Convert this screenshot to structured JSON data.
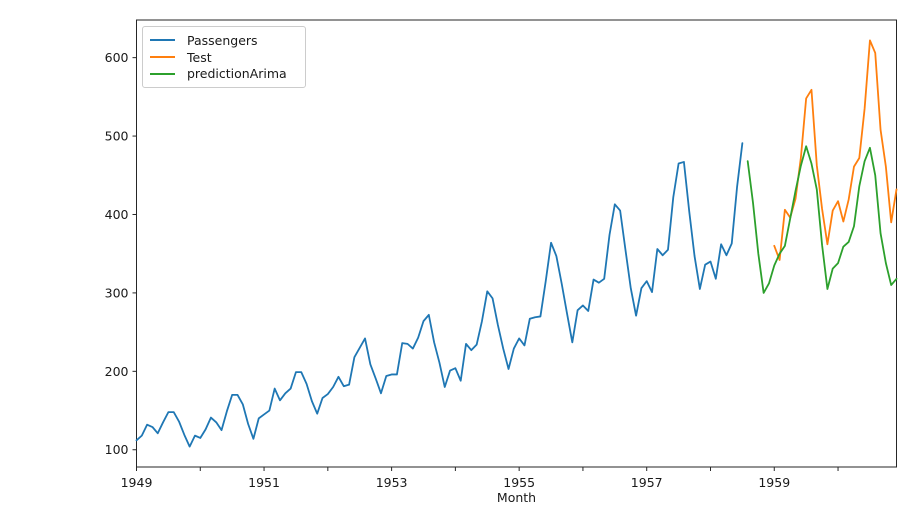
{
  "chart_data": {
    "type": "line",
    "title": "",
    "xlabel": "Month",
    "ylabel": "",
    "grid": false,
    "legend_position": "upper left",
    "x_axis": {
      "unit": "month index (0 = Jan 1949)",
      "xlim": [
        0,
        143
      ],
      "ticks": [
        {
          "month": 0,
          "label": "1949"
        },
        {
          "month": 12,
          "label": ""
        },
        {
          "month": 24,
          "label": "1951"
        },
        {
          "month": 36,
          "label": ""
        },
        {
          "month": 48,
          "label": "1953"
        },
        {
          "month": 60,
          "label": ""
        },
        {
          "month": 72,
          "label": "1955"
        },
        {
          "month": 84,
          "label": ""
        },
        {
          "month": 96,
          "label": "1957"
        },
        {
          "month": 108,
          "label": ""
        },
        {
          "month": 120,
          "label": "1959"
        },
        {
          "month": 132,
          "label": ""
        }
      ]
    },
    "y_axis": {
      "ylim": [
        78,
        648
      ],
      "ticks": [
        100,
        200,
        300,
        400,
        500,
        600
      ]
    },
    "series": [
      {
        "name": "Passengers",
        "color": "#1f77b4",
        "start_month": 0,
        "start_period": "1949-01",
        "end_period": "1958-07",
        "values": [
          112,
          118,
          132,
          129,
          121,
          135,
          148,
          148,
          136,
          119,
          104,
          118,
          115,
          126,
          141,
          135,
          125,
          149,
          170,
          170,
          158,
          133,
          114,
          140,
          145,
          150,
          178,
          163,
          172,
          178,
          199,
          199,
          184,
          162,
          146,
          166,
          171,
          180,
          193,
          181,
          183,
          218,
          230,
          242,
          209,
          191,
          172,
          194,
          196,
          196,
          236,
          235,
          229,
          243,
          264,
          272,
          237,
          211,
          180,
          201,
          204,
          188,
          235,
          227,
          234,
          264,
          302,
          293,
          259,
          229,
          203,
          229,
          242,
          233,
          267,
          269,
          270,
          315,
          364,
          347,
          312,
          274,
          237,
          278,
          284,
          277,
          317,
          313,
          318,
          374,
          413,
          405,
          355,
          306,
          271,
          306,
          315,
          301,
          356,
          348,
          355,
          422,
          465,
          467,
          404,
          347,
          305,
          336,
          340,
          318,
          362,
          348,
          363,
          435,
          491
        ]
      },
      {
        "name": "Test",
        "color": "#ff7f0e",
        "start_month": 120,
        "start_period": "1959-01",
        "end_period": "1960-12",
        "values": [
          360,
          342,
          406,
          396,
          420,
          472,
          548,
          559,
          463,
          407,
          362,
          405,
          417,
          391,
          419,
          461,
          472,
          535,
          622,
          606,
          508,
          461,
          390,
          432
        ]
      },
      {
        "name": "predictionArima",
        "color": "#2ca02c",
        "start_month": 115,
        "start_period": "1958-08",
        "end_period": "1960-12",
        "values": [
          468,
          415,
          350,
          300,
          312,
          335,
          350,
          360,
          395,
          430,
          462,
          487,
          465,
          432,
          361,
          305,
          331,
          338,
          359,
          365,
          385,
          436,
          468,
          485,
          450,
          376,
          338,
          310,
          318
        ]
      }
    ]
  }
}
